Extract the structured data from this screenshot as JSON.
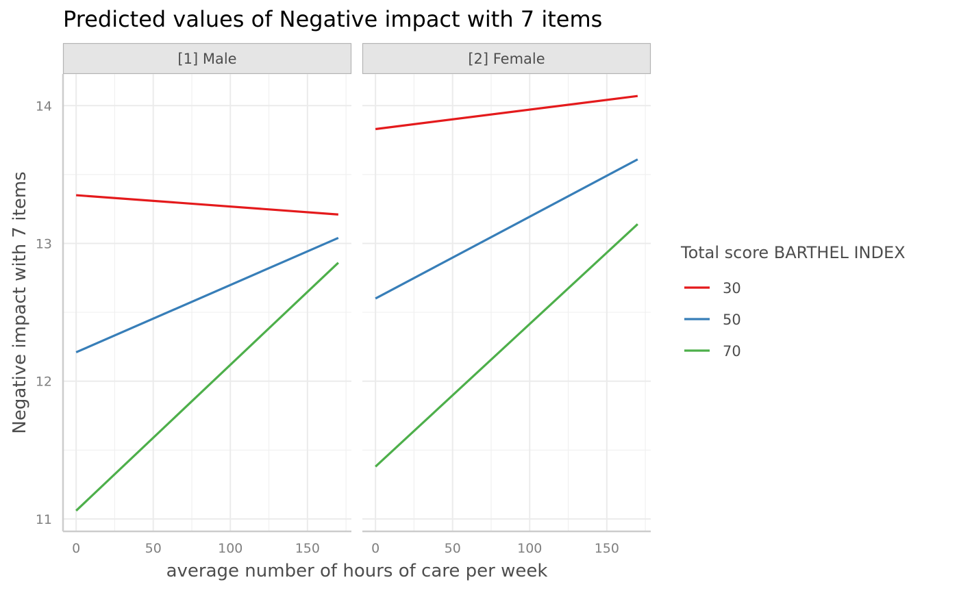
{
  "chart_data": {
    "type": "line",
    "title": "Predicted values of Negative impact with 7 items",
    "xlabel": "average number of hours of care per week",
    "ylabel": "Negative impact with 7 items",
    "xlim": [
      -8.5,
      178.5
    ],
    "ylim": [
      10.91,
      14.23
    ],
    "x_ticks": [
      0,
      50,
      100,
      150
    ],
    "x_tick_labels": [
      "0",
      "50",
      "100",
      "150"
    ],
    "y_ticks": [
      11,
      12,
      13,
      14
    ],
    "y_tick_labels": [
      "11",
      "12",
      "13",
      "14"
    ],
    "grid": true,
    "legend": {
      "title": "Total score BARTHEL INDEX",
      "position": "right",
      "entries": [
        {
          "label": "30",
          "color": "#e41a1c"
        },
        {
          "label": "50",
          "color": "#377eb8"
        },
        {
          "label": "70",
          "color": "#4daf4a"
        }
      ]
    },
    "panels": [
      {
        "label": "[1] Male",
        "series": [
          {
            "name": "30",
            "color": "#e41a1c",
            "x": [
              0,
              170
            ],
            "y": [
              13.35,
              13.21
            ]
          },
          {
            "name": "50",
            "color": "#377eb8",
            "x": [
              0,
              170
            ],
            "y": [
              12.21,
              13.04
            ]
          },
          {
            "name": "70",
            "color": "#4daf4a",
            "x": [
              0,
              170
            ],
            "y": [
              11.06,
              12.86
            ]
          }
        ]
      },
      {
        "label": "[2] Female",
        "series": [
          {
            "name": "30",
            "color": "#e41a1c",
            "x": [
              0,
              170
            ],
            "y": [
              13.83,
              14.07
            ]
          },
          {
            "name": "50",
            "color": "#377eb8",
            "x": [
              0,
              170
            ],
            "y": [
              12.6,
              13.61
            ]
          },
          {
            "name": "70",
            "color": "#4daf4a",
            "x": [
              0,
              170
            ],
            "y": [
              11.38,
              13.14
            ]
          }
        ]
      }
    ]
  }
}
